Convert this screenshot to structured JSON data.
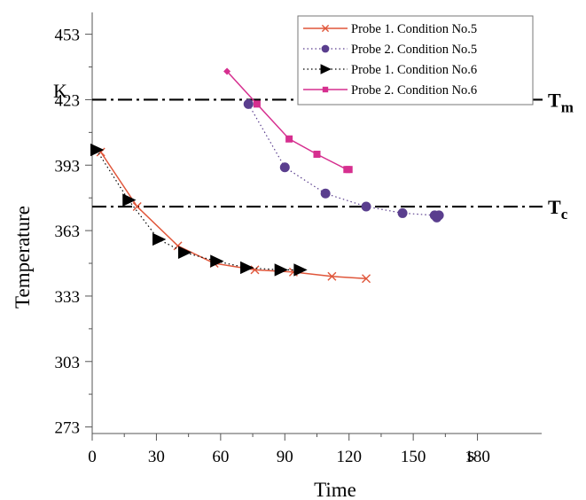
{
  "chart_data": {
    "type": "line",
    "xlabel": "Time",
    "ylabel": "Temperature",
    "x_unit": "s",
    "y_unit": "K",
    "xlim": [
      0,
      210
    ],
    "ylim": [
      270,
      463
    ],
    "x_ticks": [
      0,
      30,
      60,
      90,
      120,
      150,
      180
    ],
    "y_ticks": [
      273,
      303,
      333,
      363,
      393,
      423,
      453
    ],
    "grid": false,
    "legend_position": "top-right",
    "reference_lines": [
      {
        "label": "T",
        "subscript": "m",
        "y": 423
      },
      {
        "label": "T",
        "subscript": "c",
        "y": 374
      }
    ],
    "series": [
      {
        "name": "Probe 1. Condition No.5",
        "color": "#e0563a",
        "marker": "x",
        "line": "solid",
        "x": [
          4,
          21,
          40,
          57,
          76,
          94,
          112,
          128
        ],
        "y": [
          399,
          374,
          356,
          348,
          345,
          344,
          342,
          341
        ]
      },
      {
        "name": "Probe 2. Condition No.5",
        "color": "#5a3e8e",
        "marker": "circle",
        "line": "dotted",
        "x": [
          73,
          90,
          109,
          128,
          145,
          160,
          161,
          162
        ],
        "y": [
          421,
          392,
          380,
          374,
          371,
          370,
          369,
          370
        ]
      },
      {
        "name": "Probe 1. Condition No.6",
        "color": "#000000",
        "marker": "triangle",
        "line": "dotted",
        "x": [
          2,
          17,
          31,
          43,
          58,
          72,
          88,
          97
        ],
        "y": [
          400,
          377,
          359,
          353,
          349,
          346,
          345,
          345
        ]
      },
      {
        "name": "Probe 2. Condition No.6",
        "color": "#d62f8f",
        "marker": "square",
        "line": "solid",
        "x": [
          63,
          77,
          92,
          105,
          119,
          120
        ],
        "y": [
          436,
          421,
          405,
          398,
          391,
          391
        ]
      }
    ]
  }
}
